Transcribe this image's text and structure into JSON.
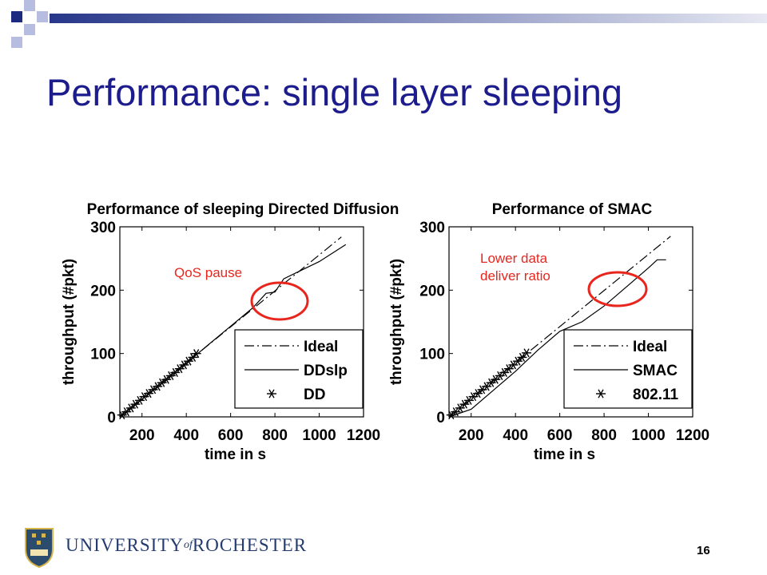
{
  "slide": {
    "title": "Performance: single layer sleeping",
    "page_number": "16",
    "footer": {
      "univ_a": "UNIVERSITY",
      "univ_of": "of",
      "univ_b": "ROCHESTER",
      "seal_text": "MELIORA"
    },
    "colors": {
      "title": "#1c1c8c",
      "header_bar": "#2a3a8a",
      "annotation": "#e8261e"
    }
  },
  "chart_data": [
    {
      "type": "line",
      "title": "Performance of sleeping Directed Diffusion",
      "xlabel": "time in s",
      "ylabel": "throughput (#pkt)",
      "xlim": [
        100,
        1200
      ],
      "ylim": [
        0,
        300
      ],
      "xticks": [
        200,
        400,
        600,
        800,
        1000,
        1200
      ],
      "yticks": [
        0,
        100,
        200,
        300
      ],
      "legend_position": "bottom-right",
      "series": [
        {
          "name": "Ideal",
          "style": "dashdot",
          "x": [
            100,
            1100
          ],
          "y": [
            0,
            284
          ]
        },
        {
          "name": "DDslp",
          "style": "solid",
          "x": [
            100,
            200,
            400,
            600,
            700,
            760,
            800,
            840,
            1000,
            1120
          ],
          "y": [
            0,
            28,
            85,
            143,
            172,
            195,
            197,
            218,
            245,
            272
          ]
        },
        {
          "name": "DD",
          "style": "star",
          "x": [
            110,
            130,
            150,
            170,
            190,
            210,
            230,
            250,
            270,
            290,
            310,
            330,
            350,
            370,
            390,
            410,
            430,
            445
          ],
          "y": [
            3,
            8,
            14,
            20,
            26,
            32,
            37,
            43,
            48,
            54,
            59,
            65,
            70,
            76,
            82,
            88,
            94,
            100
          ]
        }
      ],
      "annotations": [
        {
          "text": "QoS pause"
        }
      ]
    },
    {
      "type": "line",
      "title": "Performance of SMAC",
      "xlabel": "time in s",
      "ylabel": "throughput (#pkt)",
      "xlim": [
        100,
        1200
      ],
      "ylim": [
        0,
        300
      ],
      "xticks": [
        200,
        400,
        600,
        800,
        1000,
        1200
      ],
      "yticks": [
        0,
        100,
        200,
        300
      ],
      "legend_position": "bottom-right",
      "series": [
        {
          "name": "Ideal",
          "style": "dashdot",
          "x": [
            100,
            1100
          ],
          "y": [
            0,
            285
          ]
        },
        {
          "name": "SMAC",
          "style": "solid",
          "x": [
            100,
            200,
            300,
            400,
            500,
            600,
            700,
            800,
            900,
            1000,
            1040,
            1080
          ],
          "y": [
            0,
            12,
            42,
            72,
            105,
            135,
            150,
            175,
            205,
            235,
            248,
            248
          ]
        },
        {
          "name": "802.11",
          "style": "star",
          "x": [
            110,
            130,
            150,
            170,
            190,
            210,
            230,
            250,
            270,
            290,
            310,
            330,
            350,
            370,
            390,
            410,
            430,
            450
          ],
          "y": [
            3,
            8,
            14,
            20,
            26,
            32,
            37,
            43,
            48,
            54,
            59,
            65,
            70,
            76,
            82,
            88,
            94,
            101
          ]
        }
      ],
      "annotations": [
        {
          "text": "Lower data\ndeliver ratio"
        }
      ]
    }
  ]
}
